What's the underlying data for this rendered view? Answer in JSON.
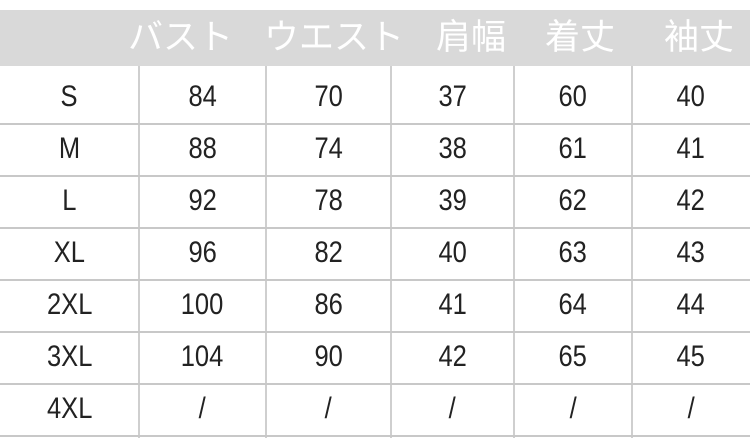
{
  "header": {
    "columns": [
      "",
      "バスト",
      "ウエスト",
      "肩幅",
      "着丈",
      "袖丈"
    ]
  },
  "rows": [
    {
      "size": "S",
      "values": [
        "84",
        "70",
        "37",
        "60",
        "40"
      ]
    },
    {
      "size": "M",
      "values": [
        "88",
        "74",
        "38",
        "61",
        "41"
      ]
    },
    {
      "size": "L",
      "values": [
        "92",
        "78",
        "39",
        "62",
        "42"
      ]
    },
    {
      "size": "XL",
      "values": [
        "96",
        "82",
        "40",
        "63",
        "43"
      ]
    },
    {
      "size": "2XL",
      "values": [
        "100",
        "86",
        "41",
        "64",
        "44"
      ]
    },
    {
      "size": "3XL",
      "values": [
        "104",
        "90",
        "42",
        "65",
        "45"
      ]
    },
    {
      "size": "4XL",
      "values": [
        "/",
        "/",
        "/",
        "/",
        "/"
      ]
    }
  ],
  "colors": {
    "header_band": "#d9d9d9",
    "header_text": "#ffffff",
    "grid": "#c8c8c8",
    "text": "#222222"
  }
}
